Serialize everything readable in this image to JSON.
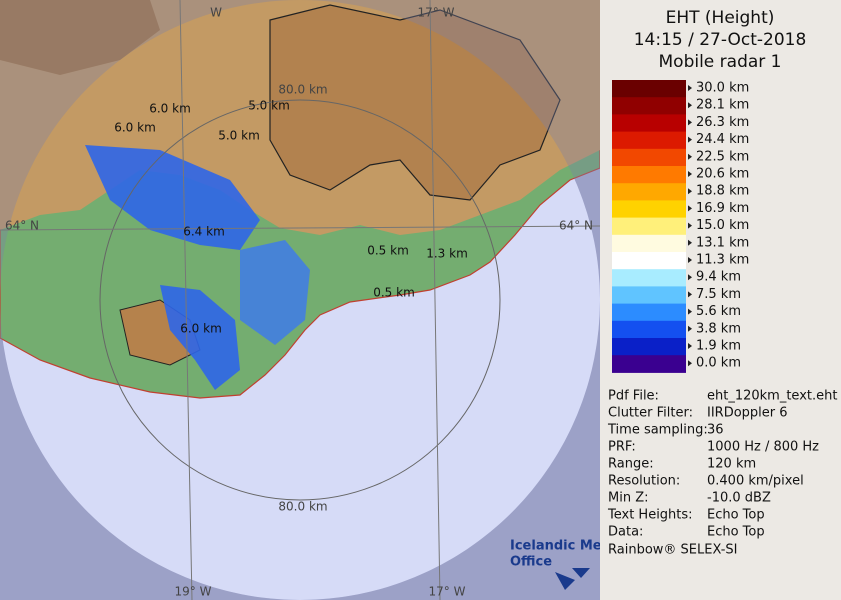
{
  "map": {
    "labels": [
      "W",
      "17° W",
      "80.0 km",
      "6.0 km",
      "5.0 km",
      "6.0 km",
      "5.0 km",
      "64° N",
      "64° N",
      "6.4 km",
      "0.5 km",
      "1.3 km",
      "0.5 km",
      "6.0 km",
      "80.0 km",
      "19° W",
      "17° W"
    ],
    "logo": [
      "Icelandic Met",
      "Office"
    ]
  },
  "panel": {
    "title": [
      "EHT (Height)",
      "14:15 / 27-Oct-2018",
      "Mobile radar 1"
    ],
    "legend": {
      "labels": [
        "30.0 km",
        "28.1 km",
        "26.3 km",
        "24.4 km",
        "22.5 km",
        "20.6 km",
        "18.8 km",
        "16.9 km",
        "15.0 km",
        "13.1 km",
        "11.3 km",
        "9.4 km",
        "7.5 km",
        "5.6 km",
        "3.8 km",
        "1.9 km",
        "0.0 km"
      ],
      "colors": [
        "#6a0000",
        "#900000",
        "#b80000",
        "#dc1a00",
        "#f24800",
        "#ff7a00",
        "#ffa800",
        "#ffd200",
        "#fff07a",
        "#fffbe0",
        "#ffffff",
        "#a8ecff",
        "#60c4ff",
        "#2c8cff",
        "#1450f0",
        "#0a20c8",
        "#3a0090"
      ]
    },
    "info": [
      [
        "Pdf File:",
        "eht_120km_text.eht"
      ],
      [
        "Clutter Filter:",
        "IIRDoppler 6"
      ],
      [
        "Time sampling:",
        "36"
      ],
      [
        "PRF:",
        "1000 Hz / 800 Hz"
      ],
      [
        "Range:",
        "120 km"
      ],
      [
        "Resolution:",
        "0.400 km/pixel"
      ],
      [
        "Min Z:",
        "-10.0 dBZ"
      ],
      [
        "Text Heights:",
        "Echo Top"
      ],
      [
        "Data:",
        "Echo Top"
      ]
    ],
    "footer": "Rainbow® SELEX-SI"
  }
}
